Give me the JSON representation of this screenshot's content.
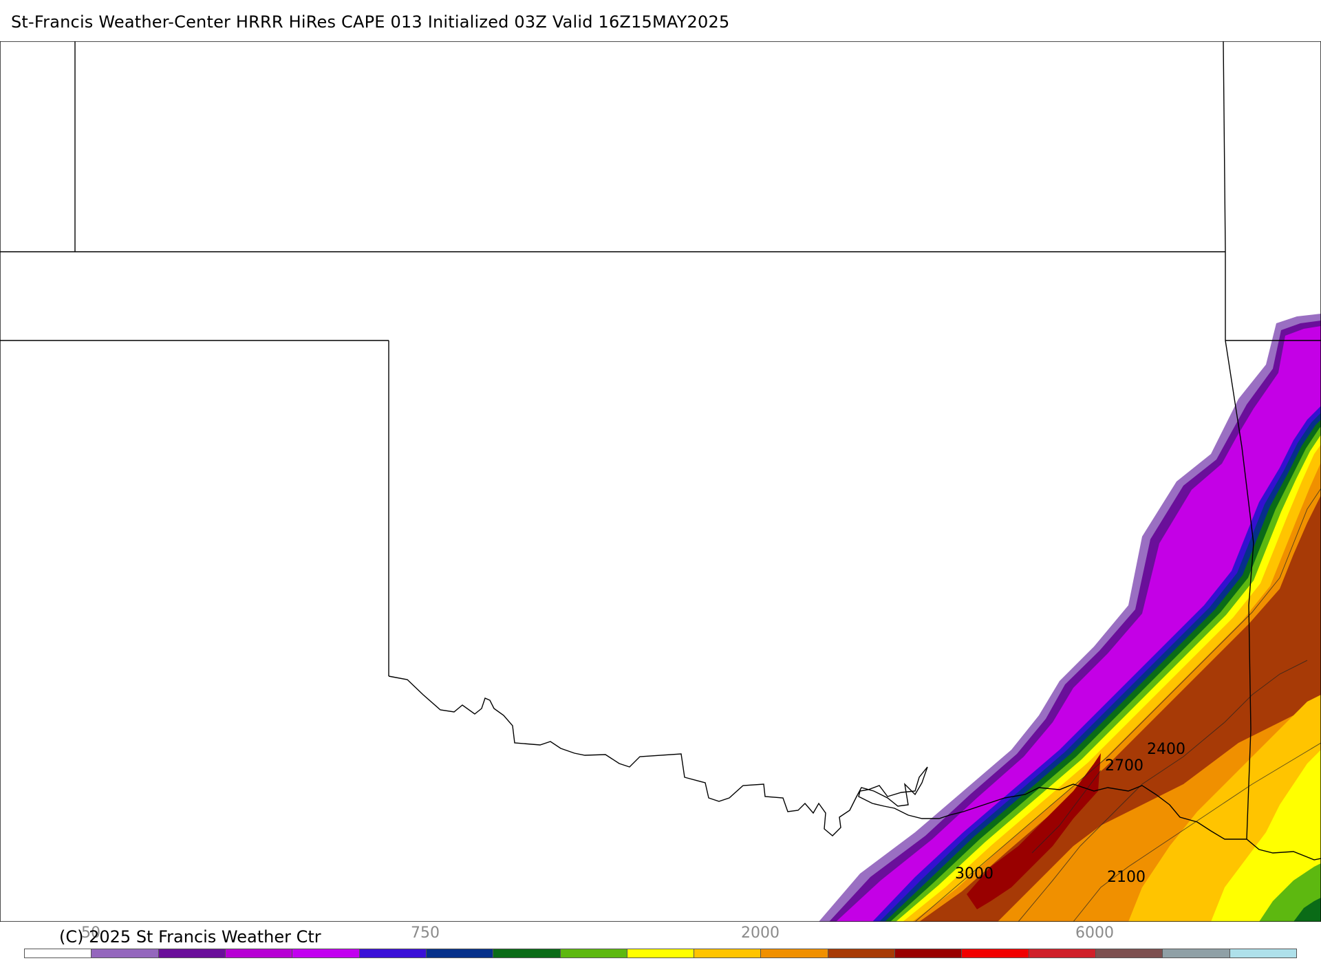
{
  "title": "St-Francis Weather-Center HRRR HiRes CAPE  013 Initialized  03Z Valid 16Z15MAY2025",
  "copyright": "(C) 2025 St Francis Weather Ctr",
  "contour_labels": [
    "2400",
    "2700",
    "3000",
    "2100"
  ],
  "colorbar": {
    "tick_labels": [
      "50",
      "750",
      "2000",
      "6000"
    ],
    "colors": [
      "#ffffff",
      "#9467bd",
      "#6a0f9a",
      "#b700d4",
      "#c200f0",
      "#3a10d8",
      "#06308a",
      "#0a6b17",
      "#5db810",
      "#ffff00",
      "#ffc400",
      "#f09000",
      "#a73a06",
      "#990000",
      "#f10000",
      "#d0202a",
      "#7d5050",
      "#8fa0a6",
      "#aee0ea"
    ]
  }
}
